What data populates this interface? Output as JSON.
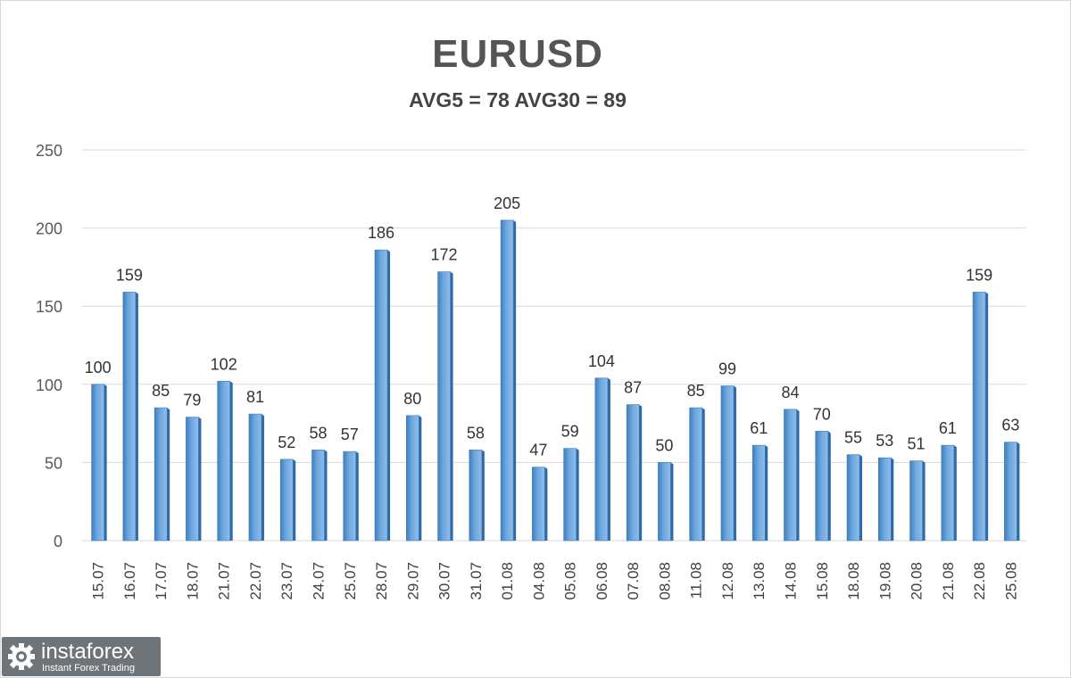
{
  "chart_data": {
    "type": "bar",
    "title": "EURUSD",
    "subtitle": "AVG5 = 78 AVG30 = 89",
    "categories": [
      "15.07",
      "16.07",
      "17.07",
      "18.07",
      "21.07",
      "22.07",
      "23.07",
      "24.07",
      "25.07",
      "28.07",
      "29.07",
      "30.07",
      "31.07",
      "01.08",
      "04.08",
      "05.08",
      "06.08",
      "07.08",
      "08.08",
      "11.08",
      "12.08",
      "13.08",
      "14.08",
      "15.08",
      "18.08",
      "19.08",
      "20.08",
      "21.08",
      "22.08",
      "25.08"
    ],
    "values": [
      100,
      159,
      85,
      79,
      102,
      81,
      52,
      58,
      57,
      186,
      80,
      172,
      58,
      205,
      47,
      59,
      104,
      87,
      50,
      85,
      99,
      61,
      84,
      70,
      55,
      53,
      51,
      61,
      159,
      63
    ],
    "ylim": [
      0,
      250
    ],
    "yticks": [
      0,
      50,
      100,
      150,
      200,
      250
    ],
    "grid": true,
    "legend": "none",
    "xlabel": "",
    "ylabel": "",
    "bar_color": "#5b9bd5"
  },
  "branding": {
    "name": "instaforex",
    "tagline": "Instant Forex Trading"
  }
}
